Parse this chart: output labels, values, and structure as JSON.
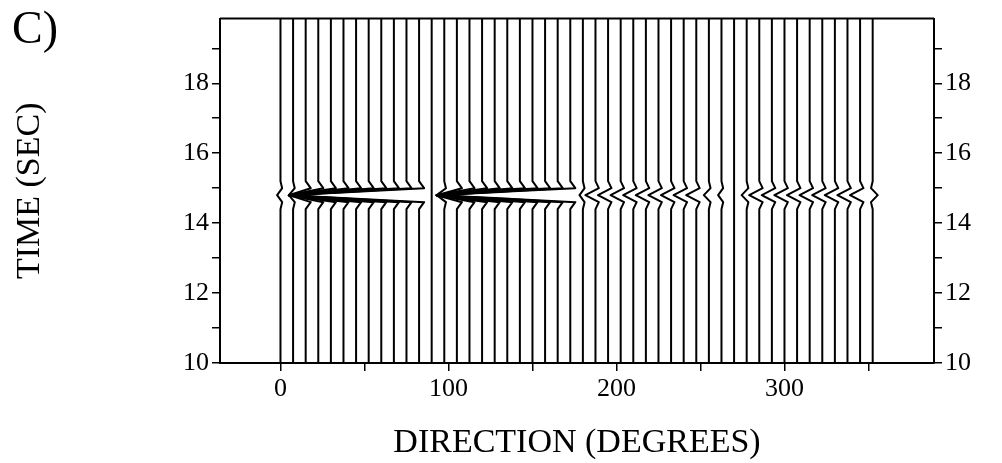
{
  "chart_data": {
    "type": "line",
    "xlabel": "DIRECTION (DEGREES)",
    "ylabel": "TIME (SEC)",
    "annotations": [
      "C)"
    ],
    "xlim": [
      -36,
      389
    ],
    "xticks": [
      0,
      {
        "value": 50,
        "label": null
      },
      100,
      {
        "value": 150,
        "label": null
      },
      200,
      {
        "value": 250,
        "label": null
      },
      300,
      {
        "value": 350,
        "label": null
      }
    ],
    "ylim": [
      10,
      19.85
    ],
    "yticks": [
      10,
      {
        "value": 11,
        "label": null
      },
      12,
      {
        "value": 13,
        "label": null
      },
      14,
      {
        "value": 15,
        "label": null
      },
      16,
      {
        "value": 17,
        "label": null
      },
      18,
      {
        "value": 19,
        "label": null
      }
    ],
    "y2lim": [
      10,
      19.85
    ],
    "y2ticks": [
      10,
      {
        "value": 11,
        "label": null
      },
      12,
      {
        "value": 13,
        "label": null
      },
      14,
      {
        "value": 15,
        "label": null
      },
      16,
      {
        "value": 17,
        "label": null
      },
      18,
      {
        "value": 19,
        "label": null
      }
    ],
    "grid": false,
    "legend": false,
    "marker": "none",
    "line_style": "solid",
    "series": [
      {
        "color": "#000000",
        "x": [
          0,
          0,
          1,
          -2,
          1,
          0,
          0
        ],
        "values": [
          10,
          14.4,
          14.6,
          14.8,
          15,
          15.2,
          19.85
        ]
      },
      {
        "color": "#000000",
        "x": [
          7.5,
          7.5,
          8.5,
          5,
          8.5,
          7.5,
          7.5
        ],
        "values": [
          10,
          14.4,
          14.6,
          14.8,
          15,
          15.2,
          19.85
        ]
      },
      {
        "color": "#000000",
        "x": [
          15,
          15,
          18,
          5,
          18,
          15,
          15
        ],
        "values": [
          10,
          14.4,
          14.6,
          14.8,
          15,
          15.2,
          19.85
        ]
      },
      {
        "color": "#000000",
        "x": [
          22.5,
          22.5,
          25.5,
          5,
          25.5,
          22.5,
          22.5
        ],
        "values": [
          10,
          14.4,
          14.6,
          14.8,
          15,
          15.2,
          19.85
        ]
      },
      {
        "color": "#000000",
        "x": [
          30,
          30,
          33,
          5,
          33,
          30,
          30
        ],
        "values": [
          10,
          14.4,
          14.6,
          14.8,
          15,
          15.2,
          19.85
        ]
      },
      {
        "color": "#000000",
        "x": [
          37.5,
          37.5,
          40.5,
          5,
          40.5,
          37.5,
          37.5
        ],
        "values": [
          10,
          14.4,
          14.6,
          14.8,
          15,
          15.2,
          19.85
        ]
      },
      {
        "color": "#000000",
        "x": [
          45,
          45,
          48,
          5,
          48,
          45,
          45
        ],
        "values": [
          10,
          14.4,
          14.6,
          14.8,
          15,
          15.2,
          19.85
        ]
      },
      {
        "color": "#000000",
        "x": [
          52.5,
          52.5,
          55.5,
          5,
          55.5,
          52.5,
          52.5
        ],
        "values": [
          10,
          14.4,
          14.6,
          14.8,
          15,
          15.2,
          19.85
        ]
      },
      {
        "color": "#000000",
        "x": [
          60,
          60,
          63,
          5,
          63,
          60,
          60
        ],
        "values": [
          10,
          14.4,
          14.6,
          14.8,
          15,
          15.2,
          19.85
        ]
      },
      {
        "color": "#000000",
        "x": [
          67.5,
          67.5,
          70.5,
          5,
          70.5,
          67.5,
          67.5
        ],
        "values": [
          10,
          14.4,
          14.6,
          14.8,
          15,
          15.2,
          19.85
        ]
      },
      {
        "color": "#000000",
        "x": [
          75,
          75,
          78,
          5,
          78,
          75,
          75
        ],
        "values": [
          10,
          14.4,
          14.6,
          14.8,
          15,
          15.2,
          19.85
        ]
      },
      {
        "color": "#000000",
        "x": [
          82.5,
          82.5,
          85.5,
          5,
          85.5,
          82.5,
          82.5
        ],
        "values": [
          10,
          14.4,
          14.6,
          14.8,
          15,
          15.2,
          19.85
        ]
      },
      {
        "color": "#000000",
        "x": [
          90,
          90,
          90,
          90,
          90,
          90,
          90
        ],
        "values": [
          10,
          14.4,
          14.6,
          14.8,
          15,
          15.2,
          19.85
        ]
      },
      {
        "color": "#000000",
        "x": [
          97.5,
          97.5,
          98.5,
          93,
          98.5,
          97.5,
          97.5
        ],
        "values": [
          10,
          14.4,
          14.6,
          14.8,
          15,
          15.2,
          19.85
        ]
      },
      {
        "color": "#000000",
        "x": [
          105,
          105,
          108,
          93,
          108,
          105,
          105
        ],
        "values": [
          10,
          14.4,
          14.6,
          14.8,
          15,
          15.2,
          19.85
        ]
      },
      {
        "color": "#000000",
        "x": [
          112.5,
          112.5,
          115.5,
          93,
          115.5,
          112.5,
          112.5
        ],
        "values": [
          10,
          14.4,
          14.6,
          14.8,
          15,
          15.2,
          19.85
        ]
      },
      {
        "color": "#000000",
        "x": [
          120,
          120,
          123,
          93,
          123,
          120,
          120
        ],
        "values": [
          10,
          14.4,
          14.6,
          14.8,
          15,
          15.2,
          19.85
        ]
      },
      {
        "color": "#000000",
        "x": [
          127.5,
          127.5,
          130.5,
          93,
          130.5,
          127.5,
          127.5
        ],
        "values": [
          10,
          14.4,
          14.6,
          14.8,
          15,
          15.2,
          19.85
        ]
      },
      {
        "color": "#000000",
        "x": [
          135,
          135,
          138,
          93,
          138,
          135,
          135
        ],
        "values": [
          10,
          14.4,
          14.6,
          14.8,
          15,
          15.2,
          19.85
        ]
      },
      {
        "color": "#000000",
        "x": [
          142.5,
          142.5,
          145.5,
          93,
          145.5,
          142.5,
          142.5
        ],
        "values": [
          10,
          14.4,
          14.6,
          14.8,
          15,
          15.2,
          19.85
        ]
      },
      {
        "color": "#000000",
        "x": [
          150,
          150,
          153,
          93,
          153,
          150,
          150
        ],
        "values": [
          10,
          14.4,
          14.6,
          14.8,
          15,
          15.2,
          19.85
        ]
      },
      {
        "color": "#000000",
        "x": [
          157.5,
          157.5,
          160.5,
          93,
          160.5,
          157.5,
          157.5
        ],
        "values": [
          10,
          14.4,
          14.6,
          14.8,
          15,
          15.2,
          19.85
        ]
      },
      {
        "color": "#000000",
        "x": [
          165,
          165,
          168,
          93,
          168,
          165,
          165
        ],
        "values": [
          10,
          14.4,
          14.6,
          14.8,
          15,
          15.2,
          19.85
        ]
      },
      {
        "color": "#000000",
        "x": [
          172.5,
          172.5,
          175.5,
          93,
          175.5,
          172.5,
          172.5
        ],
        "values": [
          10,
          14.4,
          14.6,
          14.8,
          15,
          15.2,
          19.85
        ]
      },
      {
        "color": "#000000",
        "x": [
          180,
          180,
          181,
          178,
          181,
          180,
          180
        ],
        "values": [
          10,
          14.4,
          14.6,
          14.8,
          15,
          15.2,
          19.85
        ]
      },
      {
        "color": "#000000",
        "x": [
          187.5,
          187.5,
          189.5,
          181.5,
          189.5,
          187.5,
          187.5
        ],
        "values": [
          10,
          14.4,
          14.6,
          14.8,
          15,
          15.2,
          19.85
        ]
      },
      {
        "color": "#000000",
        "x": [
          195,
          195,
          197,
          189,
          197,
          195,
          195
        ],
        "values": [
          10,
          14.4,
          14.6,
          14.8,
          15,
          15.2,
          19.85
        ]
      },
      {
        "color": "#000000",
        "x": [
          202.5,
          202.5,
          204.5,
          196.5,
          204.5,
          202.5,
          202.5
        ],
        "values": [
          10,
          14.4,
          14.6,
          14.8,
          15,
          15.2,
          19.85
        ]
      },
      {
        "color": "#000000",
        "x": [
          210,
          210,
          212,
          204,
          212,
          210,
          210
        ],
        "values": [
          10,
          14.4,
          14.6,
          14.8,
          15,
          15.2,
          19.85
        ]
      },
      {
        "color": "#000000",
        "x": [
          217.5,
          217.5,
          219.5,
          211.5,
          219.5,
          217.5,
          217.5
        ],
        "values": [
          10,
          14.4,
          14.6,
          14.8,
          15,
          15.2,
          19.85
        ]
      },
      {
        "color": "#000000",
        "x": [
          225,
          225,
          227,
          219,
          227,
          225,
          225
        ],
        "values": [
          10,
          14.4,
          14.6,
          14.8,
          15,
          15.2,
          19.85
        ]
      },
      {
        "color": "#000000",
        "x": [
          232.5,
          232.5,
          234.5,
          226.5,
          234.5,
          232.5,
          232.5
        ],
        "values": [
          10,
          14.4,
          14.6,
          14.8,
          15,
          15.2,
          19.85
        ]
      },
      {
        "color": "#000000",
        "x": [
          240,
          240,
          242,
          234,
          242,
          240,
          240
        ],
        "values": [
          10,
          14.4,
          14.6,
          14.8,
          15,
          15.2,
          19.85
        ]
      },
      {
        "color": "#000000",
        "x": [
          247.5,
          247.5,
          249.5,
          241.5,
          249.5,
          247.5,
          247.5
        ],
        "values": [
          10,
          14.4,
          14.6,
          14.8,
          15,
          15.2,
          19.85
        ]
      },
      {
        "color": "#000000",
        "x": [
          255,
          255,
          256,
          252,
          256,
          255,
          255
        ],
        "values": [
          10,
          14.4,
          14.6,
          14.8,
          15,
          15.2,
          19.85
        ]
      },
      {
        "color": "#000000",
        "x": [
          262.5,
          262.5,
          263.5,
          260.5,
          263.5,
          262.5,
          262.5
        ],
        "values": [
          10,
          14.4,
          14.6,
          14.8,
          15,
          15.2,
          19.85
        ]
      },
      {
        "color": "#000000",
        "x": [
          270,
          270,
          270,
          270,
          270,
          270,
          270
        ],
        "values": [
          10,
          14.4,
          14.6,
          14.8,
          15,
          15.2,
          19.85
        ]
      },
      {
        "color": "#000000",
        "x": [
          277.5,
          277.5,
          278.5,
          274.5,
          278.5,
          277.5,
          277.5
        ],
        "values": [
          10,
          14.4,
          14.6,
          14.8,
          15,
          15.2,
          19.85
        ]
      },
      {
        "color": "#000000",
        "x": [
          285,
          285,
          287,
          279,
          287,
          285,
          285
        ],
        "values": [
          10,
          14.4,
          14.6,
          14.8,
          15,
          15.2,
          19.85
        ]
      },
      {
        "color": "#000000",
        "x": [
          292.5,
          292.5,
          294.5,
          286.5,
          294.5,
          292.5,
          292.5
        ],
        "values": [
          10,
          14.4,
          14.6,
          14.8,
          15,
          15.2,
          19.85
        ]
      },
      {
        "color": "#000000",
        "x": [
          300,
          300,
          302,
          294,
          302,
          300,
          300
        ],
        "values": [
          10,
          14.4,
          14.6,
          14.8,
          15,
          15.2,
          19.85
        ]
      },
      {
        "color": "#000000",
        "x": [
          307.5,
          307.5,
          309.5,
          301.5,
          309.5,
          307.5,
          307.5
        ],
        "values": [
          10,
          14.4,
          14.6,
          14.8,
          15,
          15.2,
          19.85
        ]
      },
      {
        "color": "#000000",
        "x": [
          315,
          315,
          317,
          309,
          317,
          315,
          315
        ],
        "values": [
          10,
          14.4,
          14.6,
          14.8,
          15,
          15.2,
          19.85
        ]
      },
      {
        "color": "#000000",
        "x": [
          322.5,
          322.5,
          324.5,
          316.5,
          324.5,
          322.5,
          322.5
        ],
        "values": [
          10,
          14.4,
          14.6,
          14.8,
          15,
          15.2,
          19.85
        ]
      },
      {
        "color": "#000000",
        "x": [
          330,
          330,
          332,
          324,
          332,
          330,
          330
        ],
        "values": [
          10,
          14.4,
          14.6,
          14.8,
          15,
          15.2,
          19.85
        ]
      },
      {
        "color": "#000000",
        "x": [
          337.5,
          337.5,
          339.5,
          331.5,
          339.5,
          337.5,
          337.5
        ],
        "values": [
          10,
          14.4,
          14.6,
          14.8,
          15,
          15.2,
          19.85
        ]
      },
      {
        "color": "#000000",
        "x": [
          345,
          345,
          347,
          339,
          347,
          345,
          345
        ],
        "values": [
          10,
          14.4,
          14.6,
          14.8,
          15,
          15.2,
          19.85
        ]
      },
      {
        "color": "#000000",
        "x": [
          352.5,
          352.5,
          351.5,
          355.5,
          351.5,
          352.5,
          352.5
        ],
        "values": [
          10,
          14.4,
          14.6,
          14.8,
          15,
          15.2,
          19.85
        ]
      }
    ]
  }
}
